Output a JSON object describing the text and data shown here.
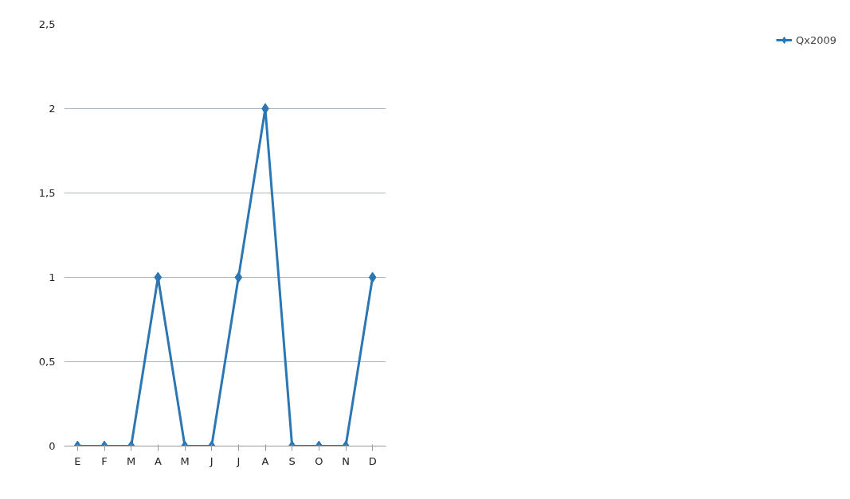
{
  "chart_data": {
    "type": "line",
    "categories": [
      "E",
      "F",
      "M",
      "A",
      "M",
      "J",
      "J",
      "A",
      "S",
      "O",
      "N",
      "D"
    ],
    "series": [
      {
        "name": "Qx2009",
        "color": "#2c77b3",
        "values": [
          0,
          0,
          0,
          1,
          0,
          0,
          1,
          2,
          0,
          0,
          0,
          1
        ]
      }
    ],
    "ylim": [
      0,
      2.5
    ],
    "yticks": [
      0,
      {
        "value": 0.5,
        "label": "0,5"
      },
      1,
      {
        "value": 1.5,
        "label": "1,5"
      },
      2,
      {
        "value": 2.5,
        "label": "2,5"
      }
    ],
    "grid": "y",
    "legend": "right",
    "marker": "diamond",
    "line_style": "solid"
  }
}
